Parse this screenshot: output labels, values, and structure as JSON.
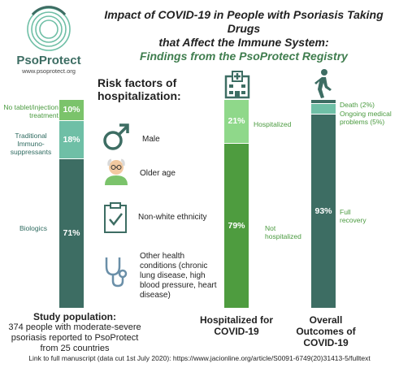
{
  "header": {
    "title_line1": "Impact of COVID-19 in People with Psoriasis Taking Drugs",
    "title_line2": "that Affect the Immune System:",
    "title_line3": "Findings from the PsoProtect Registry"
  },
  "logo": {
    "name": "PsoProtect",
    "url": "www.psoprotect.org"
  },
  "risk_factors": {
    "title": "Risk factors of hospitalization:",
    "items": [
      {
        "icon": "male-symbol-icon",
        "label": "Male"
      },
      {
        "icon": "elderly-person-icon",
        "label": "Older age"
      },
      {
        "icon": "checklist-form-icon",
        "label": "Non-white ethnicity"
      },
      {
        "icon": "stethoscope-icon",
        "label": "Other health conditions (chronic lung disease, high blood pressure, heart disease)"
      }
    ]
  },
  "chart_data": [
    {
      "type": "bar",
      "stacked": true,
      "orientation": "vertical",
      "title": "Study population:",
      "subtitle": "374 people with moderate-severe psoriasis reported to PsoProtect from 25 countries",
      "series": [
        {
          "name": "No tablet/injection treatment",
          "value": 10,
          "label": "10%",
          "color": "#7bc36b"
        },
        {
          "name": "Traditional Immuno-suppressants",
          "value": 18,
          "label": "18%",
          "color": "#6fbfa6"
        },
        {
          "name": "Biologics",
          "value": 71,
          "label": "71%",
          "color": "#3d6d63"
        }
      ]
    },
    {
      "type": "bar",
      "stacked": true,
      "orientation": "vertical",
      "title": "Hospitalized for COVID-19",
      "icon": "hospital-icon",
      "series": [
        {
          "name": "Hospitalized",
          "value": 21,
          "label": "21%",
          "color": "#8fd88a"
        },
        {
          "name": "Not hospitalized",
          "value": 79,
          "label": "79%",
          "color": "#4e9c3f"
        }
      ]
    },
    {
      "type": "bar",
      "stacked": true,
      "orientation": "vertical",
      "title": "Overall Outcomes of COVID-19",
      "icon": "walking-person-icon",
      "series": [
        {
          "name": "Death (2%)",
          "value": 2,
          "label": "",
          "color": "#3d6d63"
        },
        {
          "name": "Ongoing medical problems (5%)",
          "value": 5,
          "label": "",
          "color": "#6fbfa6"
        },
        {
          "name": "Full recovery",
          "value": 93,
          "label": "93%",
          "color": "#3d6d63"
        }
      ]
    }
  ],
  "footer": {
    "text": "Link to full manuscript (data cut 1st July 2020): https://www.jacionline.org/article/S0091-6749(20)31413-5/fulltext"
  }
}
